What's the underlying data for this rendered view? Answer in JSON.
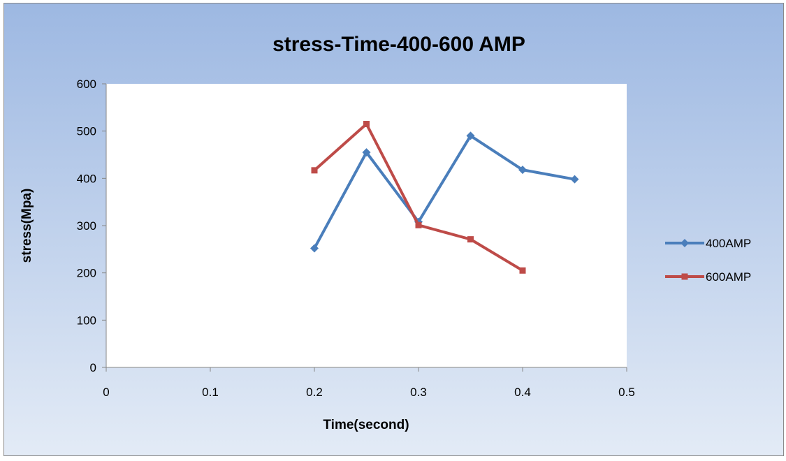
{
  "chart_data": {
    "type": "line",
    "title": "stress-Time-400-600 AMP",
    "xlabel": "Time(second)",
    "ylabel": "stress(Mpa)",
    "xlim": [
      0,
      0.5
    ],
    "ylim": [
      0,
      600
    ],
    "x_ticks": [
      0,
      0.1,
      0.2,
      0.3,
      0.4,
      0.5
    ],
    "x_tick_labels": [
      "0",
      "0.1",
      "0.2",
      "0.3",
      "0.4",
      "0.5"
    ],
    "y_ticks": [
      0,
      100,
      200,
      300,
      400,
      500,
      600
    ],
    "y_tick_labels": [
      "0",
      "100",
      "200",
      "300",
      "400",
      "500",
      "600"
    ],
    "grid": false,
    "legend_position": "right",
    "series": [
      {
        "name": "400AMP",
        "color": "#4a7ebb",
        "marker": "diamond",
        "x": [
          0.2,
          0.25,
          0.3,
          0.35,
          0.4,
          0.45
        ],
        "y": [
          252,
          455,
          308,
          490,
          418,
          398
        ]
      },
      {
        "name": "600AMP",
        "color": "#be4b48",
        "marker": "square",
        "x": [
          0.2,
          0.25,
          0.3,
          0.35,
          0.4
        ],
        "y": [
          417,
          515,
          301,
          271,
          205
        ]
      }
    ]
  }
}
